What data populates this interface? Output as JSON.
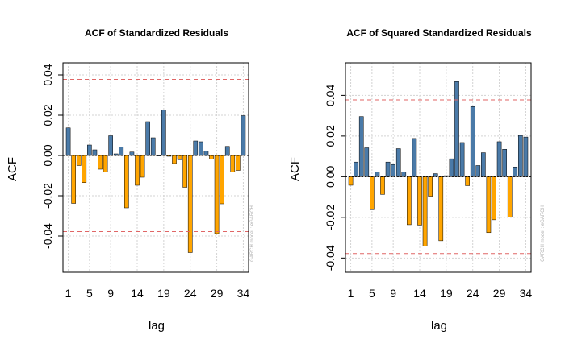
{
  "colors": {
    "positive": "#4A7AA8",
    "negative": "#FFA500",
    "bar_border": "#000000",
    "confidence": "#E06666",
    "grid": "#D3D3D3",
    "zero_line": "#000000"
  },
  "chart_data": [
    {
      "type": "bar",
      "title": "ACF of Standardized Residuals",
      "xlabel": "lag",
      "ylabel": "ACF",
      "watermark": "GARCH model : eGARCH",
      "xlim": [
        0,
        35
      ],
      "ylim": [
        -0.058,
        0.046
      ],
      "yticks": [
        -0.04,
        -0.02,
        0.0,
        0.02,
        0.04
      ],
      "ytick_labels": [
        "-0.04",
        "-0.02",
        "0.00",
        "0.02",
        "0.04"
      ],
      "xticks": [
        1,
        5,
        9,
        14,
        19,
        24,
        29,
        34
      ],
      "xtick_labels": [
        "1",
        "5",
        "9",
        "14",
        "19",
        "24",
        "29",
        "34"
      ],
      "confidence_band": 0.0378,
      "grid": true,
      "lags": [
        1,
        2,
        3,
        4,
        5,
        6,
        7,
        8,
        9,
        10,
        11,
        12,
        13,
        14,
        15,
        16,
        17,
        18,
        19,
        20,
        21,
        22,
        23,
        24,
        25,
        26,
        27,
        28,
        29,
        30,
        31,
        32,
        33,
        34
      ],
      "values": [
        0.0137,
        -0.0238,
        -0.005,
        -0.0135,
        0.0052,
        0.0028,
        -0.0068,
        -0.0082,
        0.0098,
        0.0008,
        0.0042,
        -0.026,
        0.0017,
        -0.0148,
        -0.0108,
        0.0168,
        0.0088,
        0.0,
        0.0225,
        -0.0004,
        -0.004,
        -0.0021,
        -0.0158,
        -0.0482,
        0.0072,
        0.0068,
        0.0022,
        -0.0018,
        -0.0388,
        -0.024,
        0.0045,
        -0.0082,
        -0.0074,
        0.0198
      ]
    },
    {
      "type": "bar",
      "title": "ACF of Squared Standardized Residuals",
      "xlabel": "lag",
      "ylabel": "ACF",
      "watermark": "GARCH model : eGARCH",
      "xlim": [
        0,
        35
      ],
      "ylim": [
        -0.047,
        0.056
      ],
      "yticks": [
        -0.04,
        -0.02,
        0.0,
        0.02,
        0.04
      ],
      "ytick_labels": [
        "-0.04",
        "-0.02",
        "0.00",
        "0.02",
        "0.04"
      ],
      "xticks": [
        1,
        5,
        9,
        14,
        19,
        24,
        29,
        34
      ],
      "xtick_labels": [
        "1",
        "5",
        "9",
        "14",
        "19",
        "24",
        "29",
        "34"
      ],
      "confidence_band": 0.0378,
      "grid": true,
      "lags": [
        1,
        2,
        3,
        4,
        5,
        6,
        7,
        8,
        9,
        10,
        11,
        12,
        13,
        14,
        15,
        16,
        17,
        18,
        19,
        20,
        21,
        22,
        23,
        24,
        25,
        26,
        27,
        28,
        29,
        30,
        31,
        32,
        33,
        34
      ],
      "values": [
        -0.0042,
        0.0072,
        0.0296,
        0.0142,
        -0.0162,
        0.0023,
        -0.0087,
        0.0072,
        0.006,
        0.0138,
        0.0024,
        -0.0236,
        0.0188,
        -0.0238,
        -0.0342,
        -0.0096,
        0.0015,
        -0.0315,
        0.0005,
        0.0088,
        0.0468,
        0.0168,
        -0.0044,
        0.0345,
        0.0055,
        0.0118,
        -0.0275,
        -0.0212,
        0.0172,
        0.0135,
        -0.0198,
        0.0048,
        0.0203,
        0.0195
      ]
    }
  ]
}
